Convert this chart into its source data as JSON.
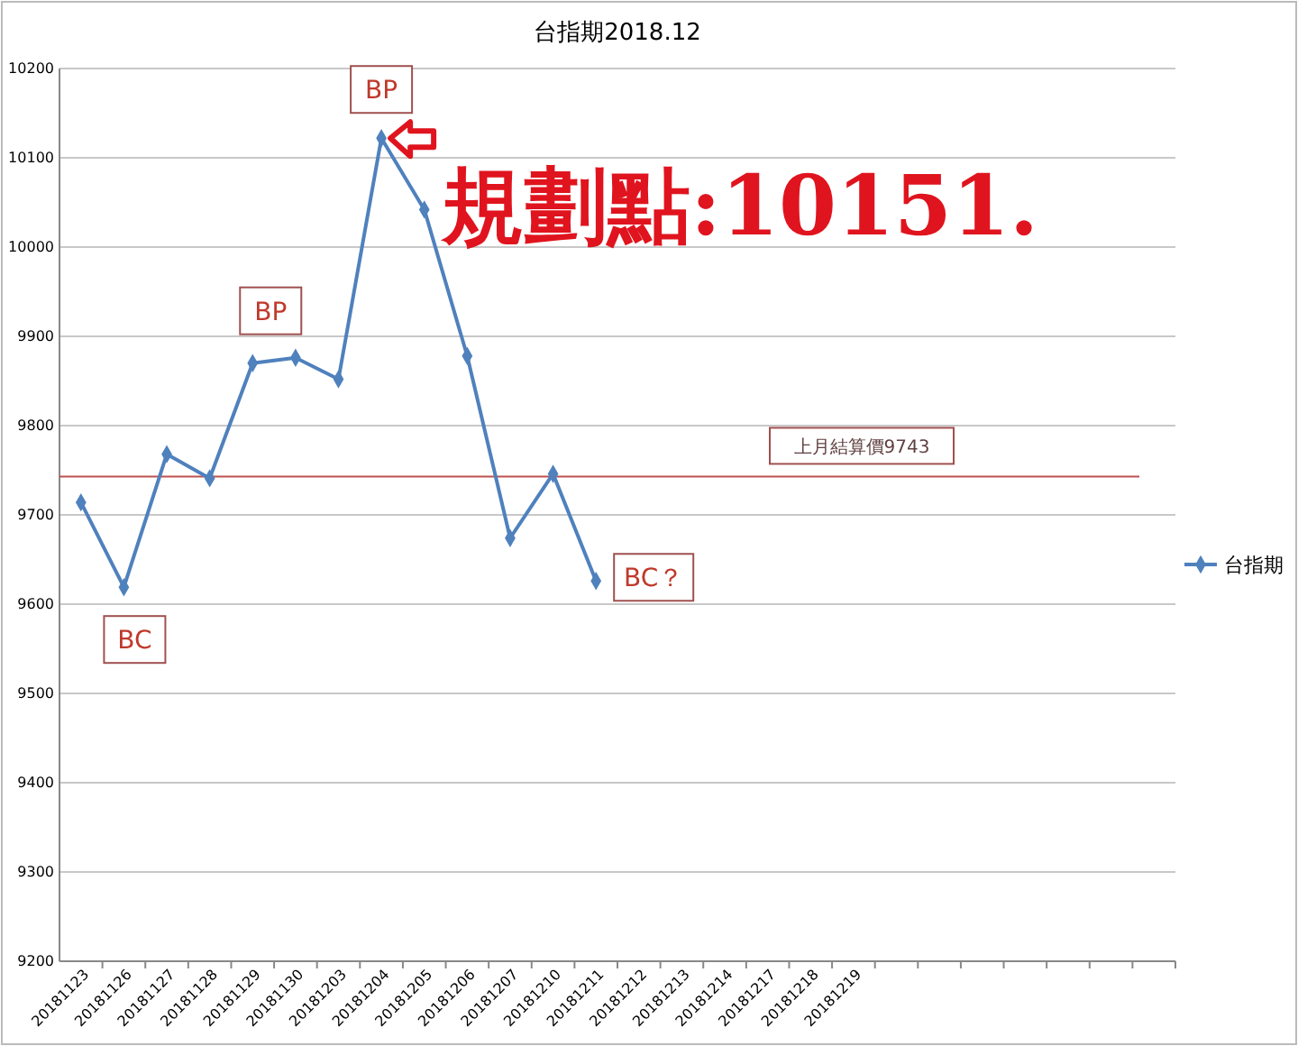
{
  "chart_data": {
    "type": "line",
    "title": "台指期2018.12",
    "categories": [
      "20181123",
      "20181126",
      "20181127",
      "20181128",
      "20181129",
      "20181130",
      "20181203",
      "20181204",
      "20181205",
      "20181206",
      "20181207",
      "20181210",
      "20181211",
      "20181212",
      "20181213",
      "20181214",
      "20181217",
      "20181218",
      "20181219",
      null,
      null,
      null,
      null,
      null,
      null,
      null
    ],
    "series": [
      {
        "name": "台指期",
        "color": "#4f81bd",
        "values": [
          9714,
          9619,
          9768,
          9741,
          9870,
          9876,
          9852,
          10122,
          10042,
          9878,
          9674,
          9746,
          9626,
          null,
          null,
          null,
          null,
          null,
          null,
          null,
          null,
          null,
          null,
          null,
          null,
          null
        ]
      }
    ],
    "ylim": [
      9200,
      10200
    ],
    "yticks": [
      9200,
      9300,
      9400,
      9500,
      9600,
      9700,
      9800,
      9900,
      10000,
      10100,
      10200
    ],
    "grid": "y",
    "legend": "right",
    "marker": "diamond",
    "line_style": "solid",
    "ref_lines": [
      {
        "axis": "y",
        "value": 9743,
        "label": "上月結算價9743",
        "color": "#c0504d"
      }
    ],
    "annotations": [
      {
        "text": "BC",
        "x": "20181126",
        "y": 9619
      },
      {
        "text": "BP",
        "x": "20181129",
        "y": 9870
      },
      {
        "text": "BP",
        "x": "20181204",
        "y": 10122
      },
      {
        "text": "BC？",
        "x": "20181211",
        "y": 9626
      },
      "規劃點:10151."
    ]
  }
}
